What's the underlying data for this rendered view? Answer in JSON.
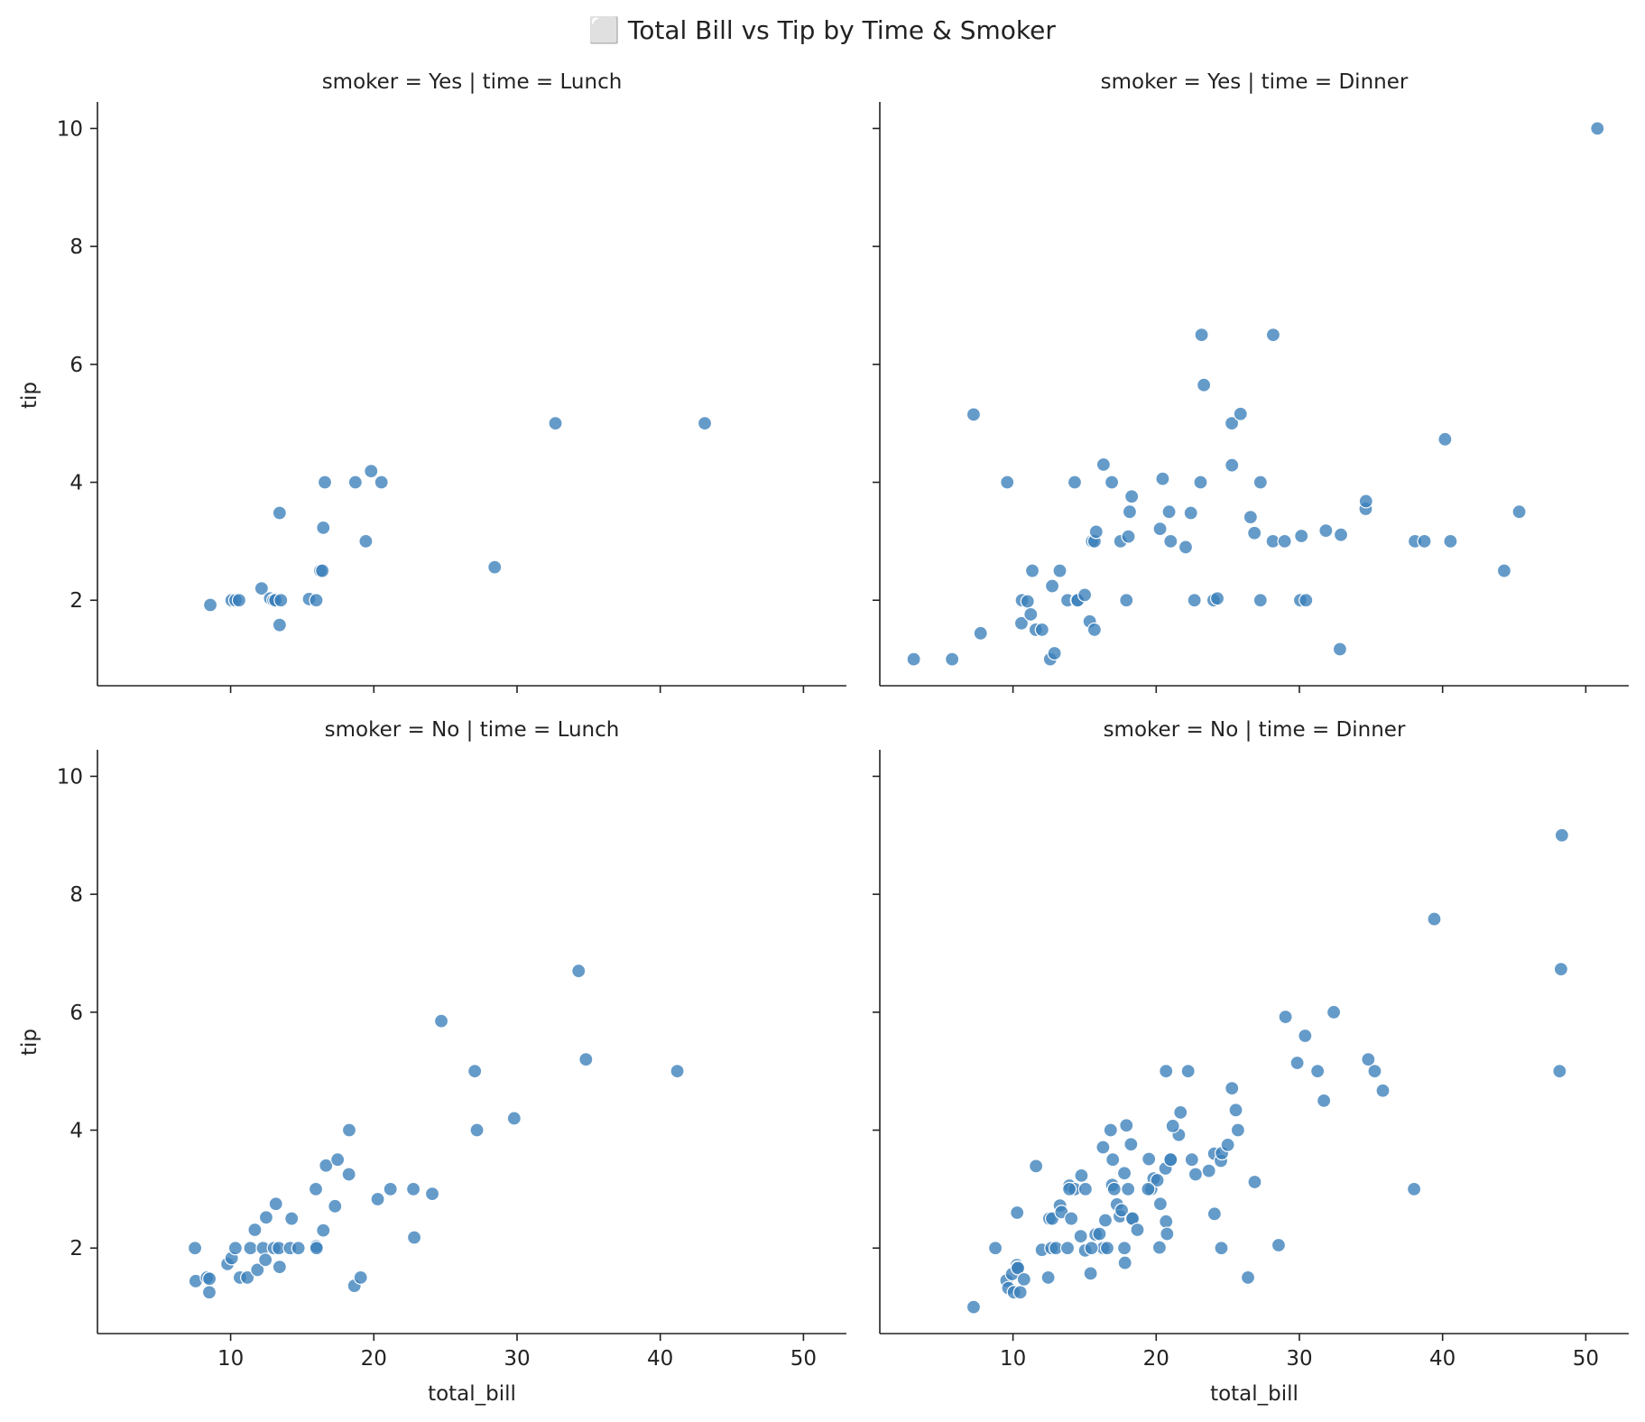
{
  "chart_data": {
    "type": "scatter",
    "title": "⬜ Total Bill vs Tip by Time & Smoker",
    "xlabel": "total_bill",
    "ylabel": "tip",
    "xlim": [
      0.7,
      53
    ],
    "ylim": [
      0.55,
      10.45
    ],
    "xticks": [
      "10",
      "20",
      "30",
      "40",
      "50"
    ],
    "yticks": [
      "2",
      "4",
      "6",
      "8",
      "10"
    ],
    "grid": false,
    "legend": "none",
    "marker_color": "#3a7fba",
    "panels": [
      {
        "title": "smoker = Yes | time = Lunch",
        "points": [
          [
            8.58,
            1.92
          ],
          [
            10.07,
            2.0
          ],
          [
            10.34,
            2.0
          ],
          [
            10.59,
            2.0
          ],
          [
            12.16,
            2.2
          ],
          [
            12.76,
            2.03
          ],
          [
            13.0,
            2.0
          ],
          [
            13.13,
            2.0
          ],
          [
            13.42,
            3.48
          ],
          [
            13.42,
            1.58
          ],
          [
            13.51,
            2.0
          ],
          [
            15.48,
            2.02
          ],
          [
            15.98,
            2.0
          ],
          [
            16.27,
            2.5
          ],
          [
            16.4,
            2.5
          ],
          [
            16.47,
            3.23
          ],
          [
            16.58,
            4.0
          ],
          [
            18.71,
            4.0
          ],
          [
            19.44,
            3.0
          ],
          [
            19.81,
            4.19
          ],
          [
            20.53,
            4.0
          ],
          [
            28.44,
            2.56
          ],
          [
            32.68,
            5.0
          ],
          [
            43.11,
            5.0
          ]
        ]
      },
      {
        "title": "smoker = Yes | time = Dinner",
        "points": [
          [
            3.07,
            1.0
          ],
          [
            5.75,
            1.0
          ],
          [
            7.25,
            5.15
          ],
          [
            7.74,
            1.44
          ],
          [
            9.6,
            4.0
          ],
          [
            10.59,
            1.61
          ],
          [
            10.63,
            2.0
          ],
          [
            11.02,
            1.98
          ],
          [
            11.24,
            1.76
          ],
          [
            11.35,
            2.5
          ],
          [
            11.59,
            1.5
          ],
          [
            12.03,
            1.5
          ],
          [
            12.6,
            1.0
          ],
          [
            12.74,
            2.24
          ],
          [
            12.9,
            1.1
          ],
          [
            13.27,
            2.5
          ],
          [
            13.81,
            2.0
          ],
          [
            14.31,
            4.0
          ],
          [
            14.48,
            2.0
          ],
          [
            14.52,
            2.0
          ],
          [
            15.01,
            2.09
          ],
          [
            15.36,
            1.64
          ],
          [
            15.53,
            3.0
          ],
          [
            15.69,
            3.0
          ],
          [
            15.69,
            1.5
          ],
          [
            15.81,
            3.16
          ],
          [
            16.32,
            4.3
          ],
          [
            16.9,
            4.0
          ],
          [
            17.51,
            3.0
          ],
          [
            17.92,
            2.0
          ],
          [
            18.06,
            3.08
          ],
          [
            18.15,
            3.5
          ],
          [
            18.29,
            3.76
          ],
          [
            20.27,
            3.21
          ],
          [
            20.45,
            4.06
          ],
          [
            20.9,
            3.5
          ],
          [
            21.01,
            3.0
          ],
          [
            22.06,
            2.9
          ],
          [
            22.42,
            3.48
          ],
          [
            22.67,
            2.0
          ],
          [
            23.1,
            4.0
          ],
          [
            23.17,
            6.5
          ],
          [
            23.33,
            5.65
          ],
          [
            24.01,
            2.0
          ],
          [
            24.27,
            2.03
          ],
          [
            25.28,
            5.0
          ],
          [
            25.29,
            4.29
          ],
          [
            25.89,
            5.16
          ],
          [
            26.59,
            3.41
          ],
          [
            26.86,
            3.14
          ],
          [
            27.28,
            4.0
          ],
          [
            27.28,
            2.0
          ],
          [
            28.17,
            6.5
          ],
          [
            28.15,
            3.0
          ],
          [
            28.97,
            3.0
          ],
          [
            30.06,
            2.0
          ],
          [
            30.14,
            3.09
          ],
          [
            30.46,
            2.0
          ],
          [
            31.85,
            3.18
          ],
          [
            32.83,
            1.17
          ],
          [
            32.9,
            3.11
          ],
          [
            34.63,
            3.55
          ],
          [
            34.65,
            3.68
          ],
          [
            38.07,
            3.0
          ],
          [
            38.73,
            3.0
          ],
          [
            40.17,
            4.73
          ],
          [
            40.55,
            3.0
          ],
          [
            44.3,
            2.5
          ],
          [
            45.35,
            3.5
          ],
          [
            50.81,
            10.0
          ]
        ]
      },
      {
        "title": "smoker = No | time = Lunch",
        "points": [
          [
            7.51,
            2.0
          ],
          [
            7.56,
            1.44
          ],
          [
            8.35,
            1.5
          ],
          [
            8.52,
            1.48
          ],
          [
            8.51,
            1.25
          ],
          [
            9.78,
            1.73
          ],
          [
            10.07,
            1.83
          ],
          [
            10.33,
            2.0
          ],
          [
            10.65,
            1.5
          ],
          [
            11.17,
            1.5
          ],
          [
            11.38,
            2.0
          ],
          [
            11.69,
            2.31
          ],
          [
            11.87,
            1.63
          ],
          [
            12.26,
            2.0
          ],
          [
            12.43,
            1.8
          ],
          [
            12.48,
            2.52
          ],
          [
            13.03,
            2.0
          ],
          [
            13.16,
            2.75
          ],
          [
            13.37,
            2.0
          ],
          [
            13.42,
            1.68
          ],
          [
            14.26,
            2.5
          ],
          [
            14.15,
            2.0
          ],
          [
            14.73,
            2.0
          ],
          [
            15.98,
            2.03
          ],
          [
            16.0,
            2.0
          ],
          [
            15.95,
            3.0
          ],
          [
            16.47,
            2.3
          ],
          [
            16.66,
            3.4
          ],
          [
            17.29,
            2.71
          ],
          [
            17.47,
            3.5
          ],
          [
            18.26,
            3.25
          ],
          [
            18.28,
            4.0
          ],
          [
            18.64,
            1.36
          ],
          [
            19.08,
            1.5
          ],
          [
            20.27,
            2.83
          ],
          [
            21.16,
            3.0
          ],
          [
            22.76,
            3.0
          ],
          [
            22.82,
            2.18
          ],
          [
            24.08,
            2.92
          ],
          [
            24.71,
            5.85
          ],
          [
            27.05,
            5.0
          ],
          [
            27.2,
            4.0
          ],
          [
            29.8,
            4.2
          ],
          [
            34.3,
            6.7
          ],
          [
            34.81,
            5.2
          ],
          [
            41.19,
            5.0
          ]
        ]
      },
      {
        "title": "smoker = No | time = Dinner",
        "points": [
          [
            7.25,
            1.0
          ],
          [
            8.77,
            2.0
          ],
          [
            9.55,
            1.45
          ],
          [
            9.68,
            1.32
          ],
          [
            9.94,
            1.56
          ],
          [
            10.07,
            1.25
          ],
          [
            10.27,
            1.71
          ],
          [
            10.29,
            2.6
          ],
          [
            10.33,
            1.67
          ],
          [
            10.34,
            1.66
          ],
          [
            10.51,
            1.25
          ],
          [
            10.77,
            1.47
          ],
          [
            11.61,
            3.39
          ],
          [
            12.02,
            1.97
          ],
          [
            12.46,
            1.5
          ],
          [
            12.54,
            2.5
          ],
          [
            12.69,
            2.0
          ],
          [
            12.74,
            2.5
          ],
          [
            13.28,
            2.72
          ],
          [
            13.39,
            2.61
          ],
          [
            13.0,
            2.0
          ],
          [
            13.81,
            2.0
          ],
          [
            13.94,
            3.06
          ],
          [
            14.07,
            2.5
          ],
          [
            14.31,
            3.0
          ],
          [
            14.78,
            3.23
          ],
          [
            14.73,
            2.2
          ],
          [
            15.04,
            1.96
          ],
          [
            15.06,
            3.0
          ],
          [
            15.42,
            1.57
          ],
          [
            15.77,
            2.23
          ],
          [
            16.04,
            2.24
          ],
          [
            16.29,
            3.71
          ],
          [
            16.31,
            2.0
          ],
          [
            16.45,
            2.47
          ],
          [
            16.58,
            2.0
          ],
          [
            16.93,
            3.07
          ],
          [
            16.97,
            3.5
          ],
          [
            17.07,
            3.0
          ],
          [
            17.26,
            2.74
          ],
          [
            17.46,
            2.54
          ],
          [
            17.59,
            2.64
          ],
          [
            17.78,
            3.27
          ],
          [
            17.82,
            1.75
          ],
          [
            17.92,
            4.08
          ],
          [
            18.04,
            3.0
          ],
          [
            18.24,
            3.76
          ],
          [
            18.29,
            2.5
          ],
          [
            18.35,
            2.5
          ],
          [
            18.69,
            2.31
          ],
          [
            19.49,
            3.51
          ],
          [
            19.65,
            3.0
          ],
          [
            19.82,
            3.18
          ],
          [
            20.08,
            3.15
          ],
          [
            20.23,
            2.01
          ],
          [
            20.29,
            2.75
          ],
          [
            20.65,
            3.35
          ],
          [
            20.69,
            2.45
          ],
          [
            20.76,
            2.24
          ],
          [
            20.69,
            5.0
          ],
          [
            21.0,
            3.5
          ],
          [
            21.01,
            3.5
          ],
          [
            21.58,
            3.92
          ],
          [
            21.7,
            4.3
          ],
          [
            22.23,
            5.0
          ],
          [
            22.49,
            3.5
          ],
          [
            22.75,
            3.25
          ],
          [
            23.68,
            3.31
          ],
          [
            24.06,
            3.6
          ],
          [
            24.52,
            3.48
          ],
          [
            24.55,
            2.0
          ],
          [
            24.59,
            3.61
          ],
          [
            25.0,
            3.75
          ],
          [
            25.56,
            4.34
          ],
          [
            25.71,
            4.0
          ],
          [
            26.41,
            1.5
          ],
          [
            26.88,
            3.12
          ],
          [
            28.55,
            2.05
          ],
          [
            29.03,
            5.92
          ],
          [
            29.85,
            5.14
          ],
          [
            30.4,
            5.6
          ],
          [
            31.27,
            5.0
          ],
          [
            31.71,
            4.5
          ],
          [
            32.4,
            6.0
          ],
          [
            34.81,
            5.2
          ],
          [
            35.26,
            5.0
          ],
          [
            35.83,
            4.67
          ],
          [
            38.01,
            3.0
          ],
          [
            39.42,
            7.58
          ],
          [
            48.17,
            5.0
          ],
          [
            48.27,
            6.73
          ],
          [
            48.33,
            9.0
          ],
          [
            25.29,
            4.71
          ],
          [
            24.07,
            2.58
          ],
          [
            21.16,
            4.07
          ],
          [
            19.44,
            3.0
          ],
          [
            17.78,
            2.0
          ],
          [
            13.94,
            3.0
          ],
          [
            15.48,
            2.0
          ],
          [
            16.82,
            4.0
          ]
        ]
      }
    ]
  }
}
